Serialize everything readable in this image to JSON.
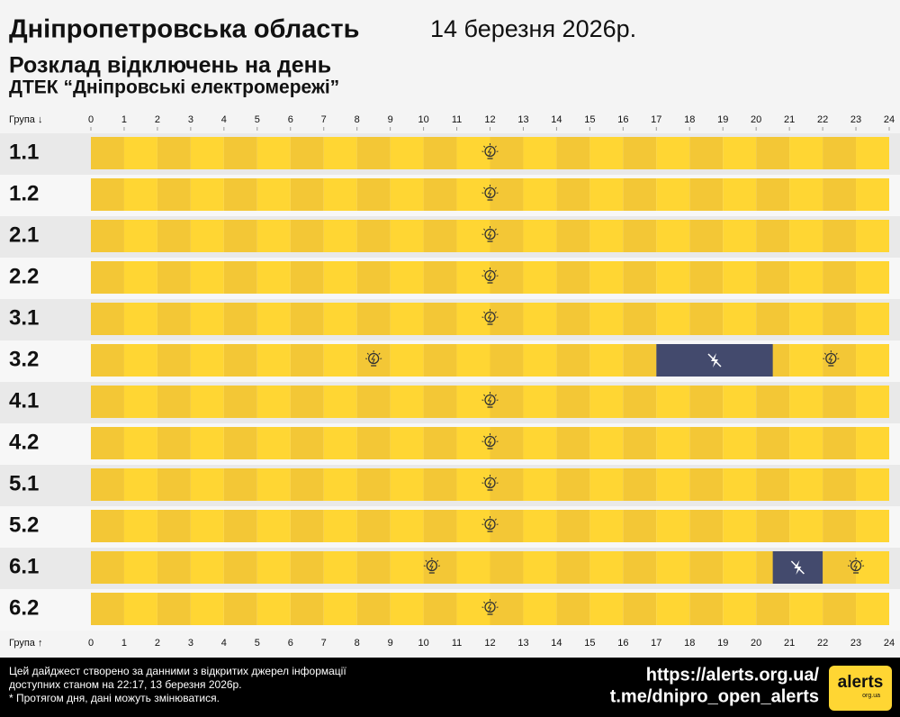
{
  "chart_data": {
    "type": "timeline",
    "title": "Дніпропетровська область",
    "date": "14 березня 2026р.",
    "subtitle": "Розклад відключень на день",
    "subtitle2": "ДТЕК “Дніпровські електромережі”",
    "axis_label_top": "Група ↓",
    "axis_label_bottom": "Група ↑",
    "xlim": [
      0,
      24
    ],
    "xticks": [
      0,
      1,
      2,
      3,
      4,
      5,
      6,
      7,
      8,
      9,
      10,
      11,
      12,
      13,
      14,
      15,
      16,
      17,
      18,
      19,
      20,
      21,
      22,
      23,
      24
    ],
    "categories": [
      "1.1",
      "1.2",
      "2.1",
      "2.2",
      "3.1",
      "3.2",
      "4.1",
      "4.2",
      "5.1",
      "5.2",
      "6.1",
      "6.2"
    ],
    "outages": [
      [],
      [],
      [],
      [],
      [],
      [
        [
          17,
          20.5
        ]
      ],
      [],
      [],
      [],
      [],
      [
        [
          20.5,
          22
        ]
      ],
      []
    ],
    "on_color": "#ffd633",
    "on_color_alt": "#f3c736",
    "off_color": "#434a6d",
    "footer": {
      "note_lines": [
        "Цей дайджест створено за данними з відкритих джерел інформації",
        "доступних станом на 22:17, 13 березня 2026р.",
        "* Протягом дня, дані можуть змінюватися."
      ],
      "url": "https://alerts.org.ua/",
      "telegram": "t.me/dnipro_open_alerts",
      "logo": "alerts",
      "logo_sub": "org.ua"
    }
  }
}
